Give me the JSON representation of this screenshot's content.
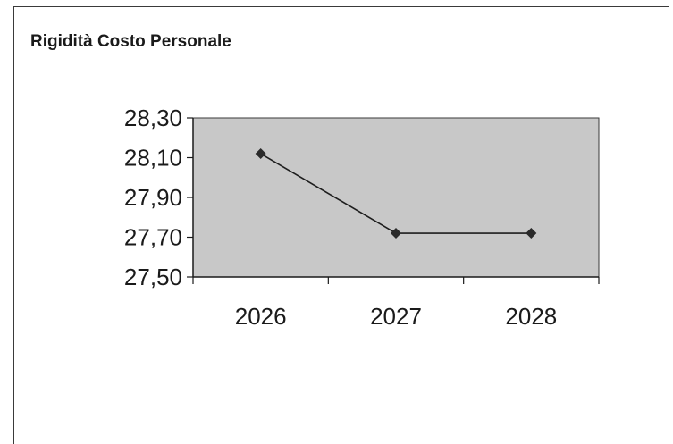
{
  "chart_data": {
    "type": "line",
    "title": "Rigidità Costo Personale",
    "xlabel": "",
    "ylabel": "",
    "categories": [
      "2026",
      "2027",
      "2028"
    ],
    "series": [
      {
        "values": [
          28.12,
          27.72,
          27.72
        ]
      }
    ],
    "ylim": [
      27.5,
      28.3
    ],
    "yticks": [
      "27,50",
      "27,70",
      "27,90",
      "28,10",
      "28,30"
    ],
    "ytick_values": [
      27.5,
      27.7,
      27.9,
      28.1,
      28.3
    ],
    "grid": false,
    "legend": "none",
    "colors": {
      "plot_background": "#c8c8c8",
      "line": "#1e1e1e",
      "marker": "#2a2a2a"
    }
  }
}
